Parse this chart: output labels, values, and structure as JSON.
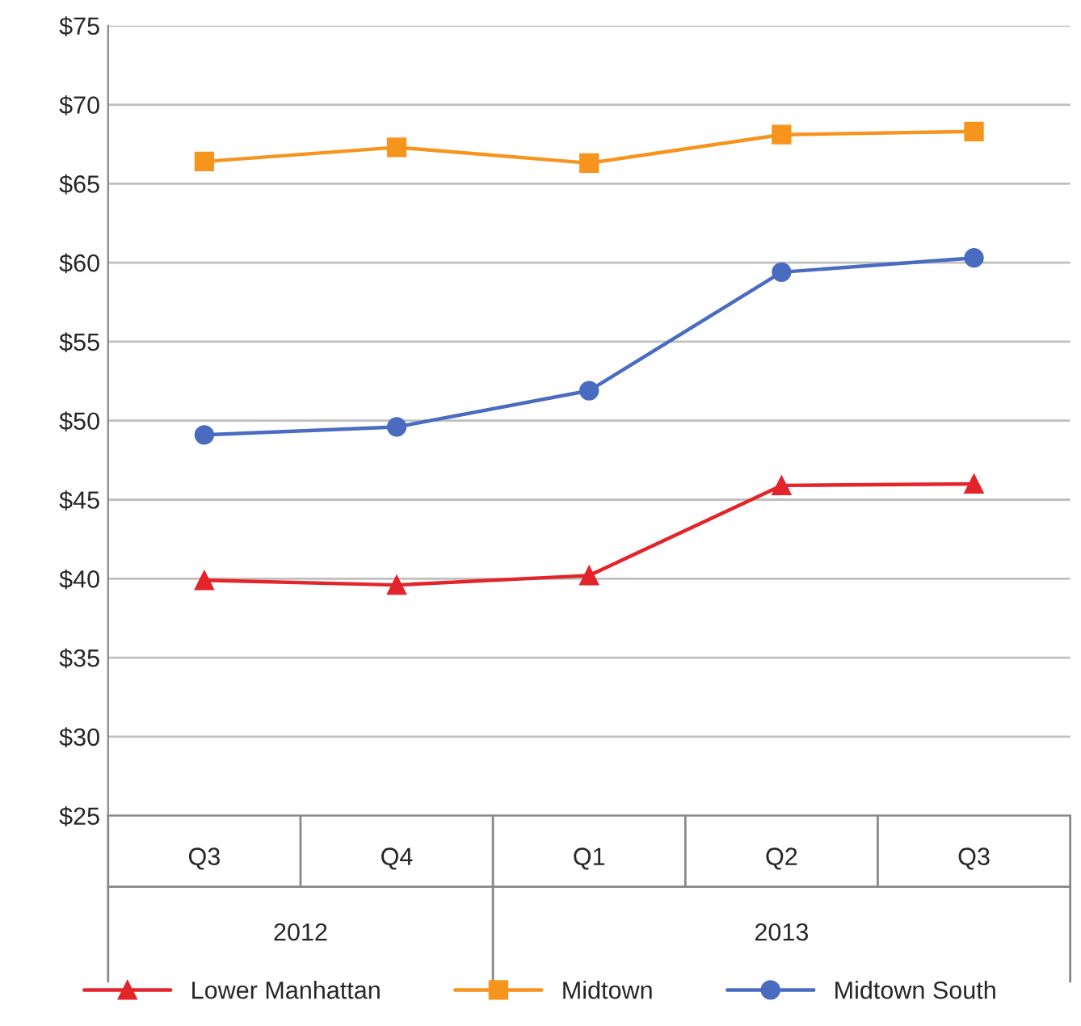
{
  "chart_data": {
    "type": "line",
    "categories": [
      "Q3",
      "Q4",
      "Q1",
      "Q2",
      "Q3"
    ],
    "series": [
      {
        "name": "Lower Manhattan",
        "color": "#e3242b",
        "marker": "triangle",
        "values": [
          39.9,
          39.6,
          40.2,
          45.9,
          46.0
        ]
      },
      {
        "name": "Midtown",
        "color": "#f7941d",
        "marker": "square",
        "values": [
          66.4,
          67.3,
          66.3,
          68.1,
          68.3
        ]
      },
      {
        "name": "Midtown South",
        "color": "#4a6cc0",
        "marker": "circle",
        "values": [
          49.1,
          49.6,
          51.9,
          59.4,
          60.3
        ]
      }
    ],
    "annotations": [
      "2012",
      "2013"
    ],
    "ylim": [
      25,
      75
    ],
    "yticks": [
      {
        "value": 25,
        "label": "$25"
      },
      {
        "value": 30,
        "label": "$30"
      },
      {
        "value": 35,
        "label": "$35"
      },
      {
        "value": 40,
        "label": "$40"
      },
      {
        "value": 45,
        "label": "$45"
      },
      {
        "value": 50,
        "label": "$50"
      },
      {
        "value": 55,
        "label": "$55"
      },
      {
        "value": 60,
        "label": "$60"
      },
      {
        "value": 65,
        "label": "$65"
      },
      {
        "value": 70,
        "label": "$70"
      },
      {
        "value": 75,
        "label": "$75"
      }
    ],
    "grid": "y",
    "legend": "bottom"
  }
}
